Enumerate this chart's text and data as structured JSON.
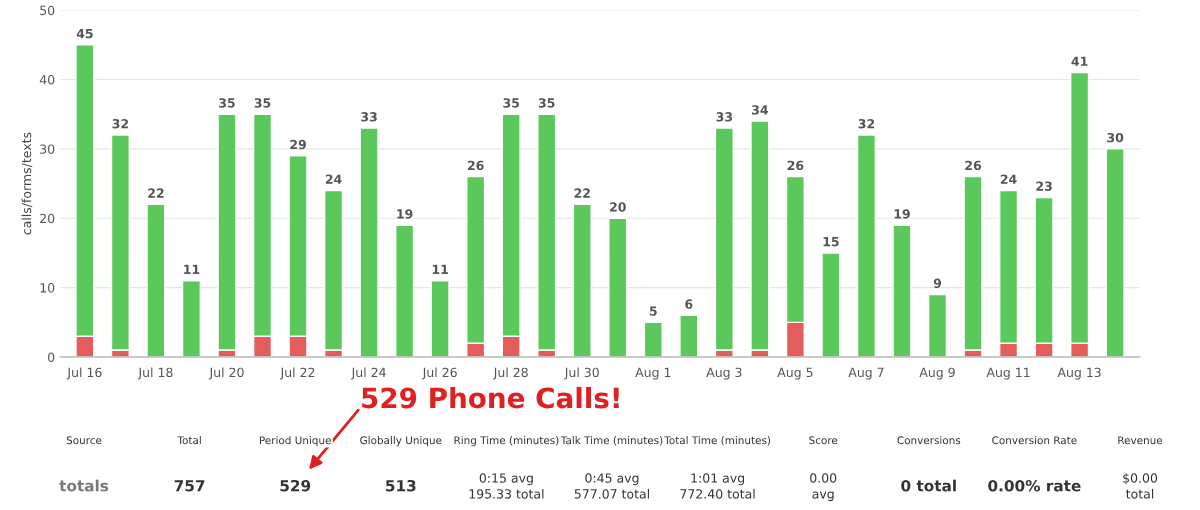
{
  "chart_data": {
    "type": "bar",
    "stacked": true,
    "ylabel": "calls/forms/texts",
    "categories": [
      "Jul 16",
      null,
      "Jul 18",
      null,
      "Jul 20",
      null,
      "Jul 22",
      null,
      "Jul 24",
      null,
      "Jul 26",
      null,
      "Jul 28",
      null,
      "Jul 30",
      null,
      "Aug 1",
      null,
      "Aug 3",
      null,
      "Aug 5",
      null,
      "Aug 7",
      null,
      "Aug 9",
      null,
      "Aug 11",
      null,
      "Aug 13",
      null
    ],
    "series": [
      {
        "color": "#e35d5d",
        "values": [
          3,
          1,
          0,
          0,
          1,
          3,
          3,
          1,
          0,
          0,
          0,
          2,
          3,
          1,
          0,
          0,
          0,
          0,
          1,
          1,
          5,
          0,
          0,
          0,
          0,
          1,
          2,
          2,
          2,
          0
        ]
      },
      {
        "color": "#5ac85a",
        "values": [
          42,
          31,
          22,
          11,
          34,
          32,
          26,
          23,
          33,
          19,
          11,
          24,
          32,
          34,
          22,
          20,
          5,
          6,
          32,
          33,
          21,
          15,
          32,
          19,
          9,
          25,
          22,
          21,
          39,
          30
        ]
      }
    ],
    "totals": [
      "45",
      "32",
      "22",
      "11",
      "35",
      "35",
      "29",
      "24",
      "33",
      "19",
      "11",
      "26",
      "35",
      "35",
      "22",
      "20",
      "5",
      "6",
      "33",
      "34",
      "26",
      "15",
      "32",
      "19",
      "9",
      "26",
      "24",
      "23",
      "41",
      "30"
    ],
    "ylim": [
      0,
      50
    ],
    "yticks": [
      0,
      10,
      20,
      30,
      40,
      50
    ],
    "grid": "y",
    "annotations": [
      "529 Phone Calls!",
      "Source",
      "Total",
      "Period Unique",
      "Globally Unique",
      "Ring Time (minutes)",
      "Talk Time (minutes)",
      "Total Time (minutes)",
      "Score",
      "Conversions",
      "Conversion Rate",
      "Revenue",
      "totals",
      "757",
      "529",
      "513",
      "0:15 avg\n195.33 total",
      "0:45 avg\n577.07 total",
      "1:01 avg\n772.40 total",
      "0.00\navg",
      "0 total",
      "0.00% rate",
      "$0.00\ntotal"
    ]
  }
}
